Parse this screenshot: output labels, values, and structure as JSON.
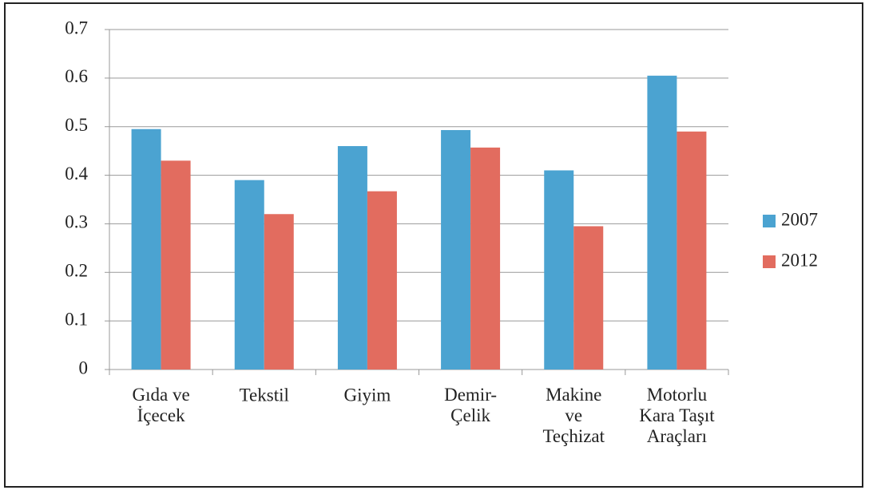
{
  "chart_data": {
    "type": "bar",
    "categories": [
      "Gıda ve\nİçecek",
      "Tekstil",
      "Giyim",
      "Demir-\nÇelik",
      "Makine\nve\nTeçhizat",
      "Motorlu\nKara Taşıt\nAraçları"
    ],
    "series": [
      {
        "name": "2007",
        "color": "#4ba3d1",
        "values": [
          0.495,
          0.39,
          0.46,
          0.493,
          0.41,
          0.605
        ]
      },
      {
        "name": "2012",
        "color": "#e26c5f",
        "values": [
          0.43,
          0.32,
          0.367,
          0.457,
          0.295,
          0.49
        ]
      }
    ],
    "ylim": [
      0,
      0.7
    ],
    "yticks": [
      0,
      0.1,
      0.2,
      0.3,
      0.4,
      0.5,
      0.6,
      0.7
    ],
    "grid": true,
    "legend": "right"
  }
}
